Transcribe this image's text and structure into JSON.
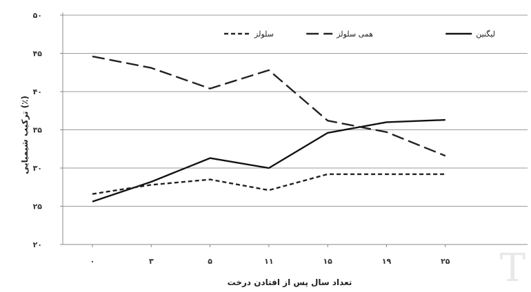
{
  "chart_data": {
    "type": "line",
    "categories": [
      "۰",
      "۳",
      "۵",
      "۱۱",
      "۱۵",
      "۱۹",
      "۲۵"
    ],
    "xlabel": "تعداد سال پس از افتادن درخت",
    "ylabel": "ترکیب شیمیایی (٪)",
    "ylim": [
      20,
      50
    ],
    "yticks": [
      {
        "value": 20,
        "label": "۲۰"
      },
      {
        "value": 25,
        "label": "۲۵"
      },
      {
        "value": 30,
        "label": "۳۰"
      },
      {
        "value": 35,
        "label": "۳۵"
      },
      {
        "value": 40,
        "label": "۴۰"
      },
      {
        "value": 45,
        "label": "۴۵"
      },
      {
        "value": 50,
        "label": "۵۰"
      }
    ],
    "grid": true,
    "legend_position": "top",
    "series": [
      {
        "name": "لیگنین",
        "style": "solid",
        "color": "#111111",
        "values": [
          25.6,
          28.2,
          31.3,
          30.0,
          34.6,
          36.0,
          36.3
        ]
      },
      {
        "name": "همی سلولز",
        "style": "longdash",
        "color": "#222222",
        "values": [
          44.6,
          43.1,
          40.4,
          42.8,
          36.2,
          34.7,
          31.6
        ]
      },
      {
        "name": "سلولز",
        "style": "shortdash",
        "color": "#222222",
        "values": [
          26.6,
          27.8,
          28.5,
          27.1,
          29.2,
          29.2,
          29.2
        ]
      }
    ]
  },
  "watermark": "T"
}
